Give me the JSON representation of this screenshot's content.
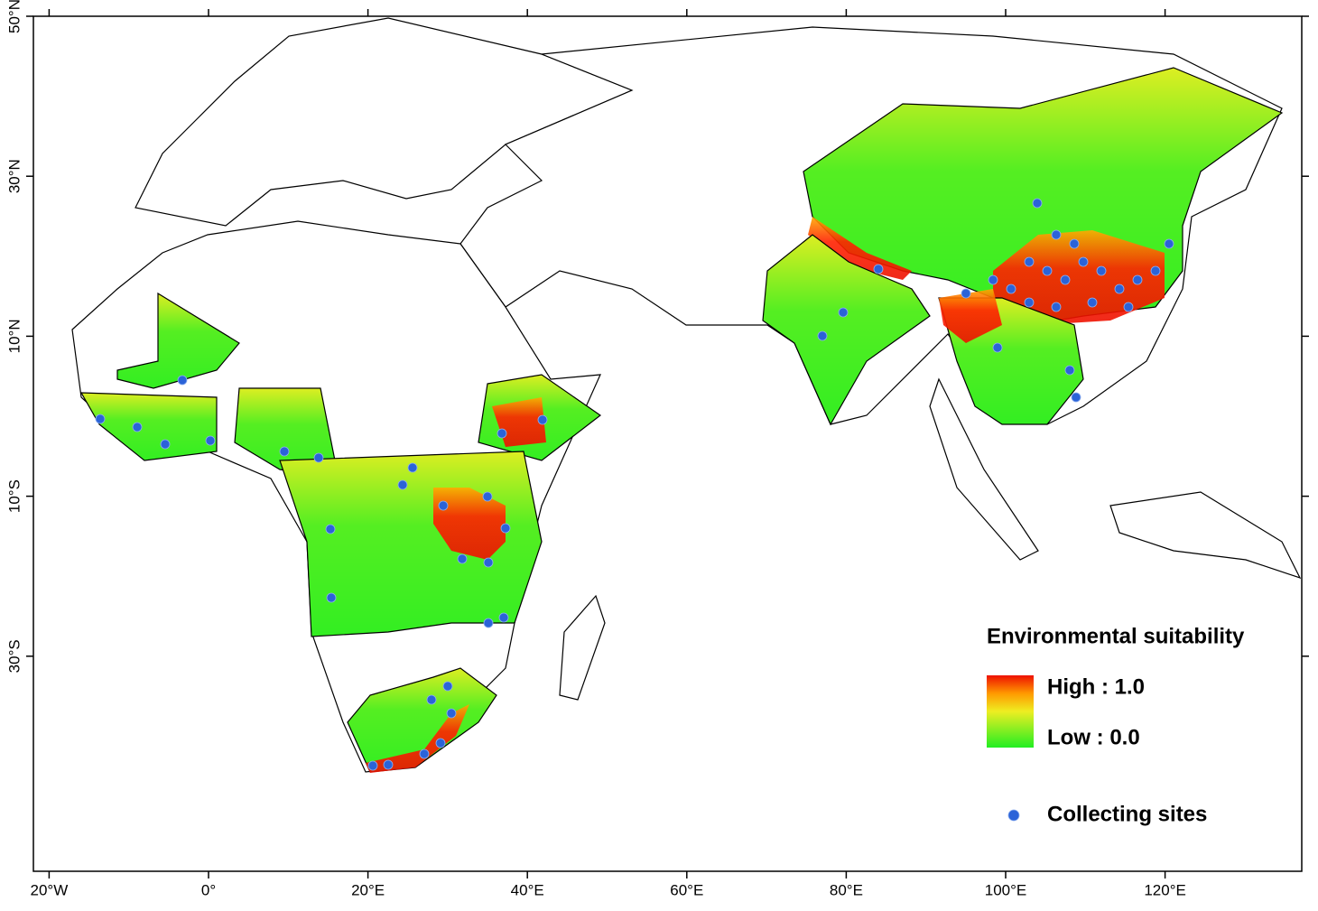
{
  "map": {
    "lon_ticks": [
      {
        "value": -20,
        "label": "20°W"
      },
      {
        "value": 0,
        "label": "0°"
      },
      {
        "value": 20,
        "label": "20°E"
      },
      {
        "value": 40,
        "label": "40°E"
      },
      {
        "value": 60,
        "label": "60°E"
      },
      {
        "value": 80,
        "label": "80°E"
      },
      {
        "value": 100,
        "label": "100°E"
      },
      {
        "value": 120,
        "label": "120°E"
      }
    ],
    "lat_ticks": [
      {
        "value": 50,
        "label": "50°N"
      },
      {
        "value": 30,
        "label": "30°N"
      },
      {
        "value": 10,
        "label": "10°N"
      },
      {
        "value": -10,
        "label": "10°S"
      },
      {
        "value": -30,
        "label": "30°S"
      }
    ],
    "legend": {
      "title": "Environmental suitability",
      "high": "High : 1.0",
      "low": "Low : 0.0",
      "sites": "Collecting sites"
    }
  }
}
